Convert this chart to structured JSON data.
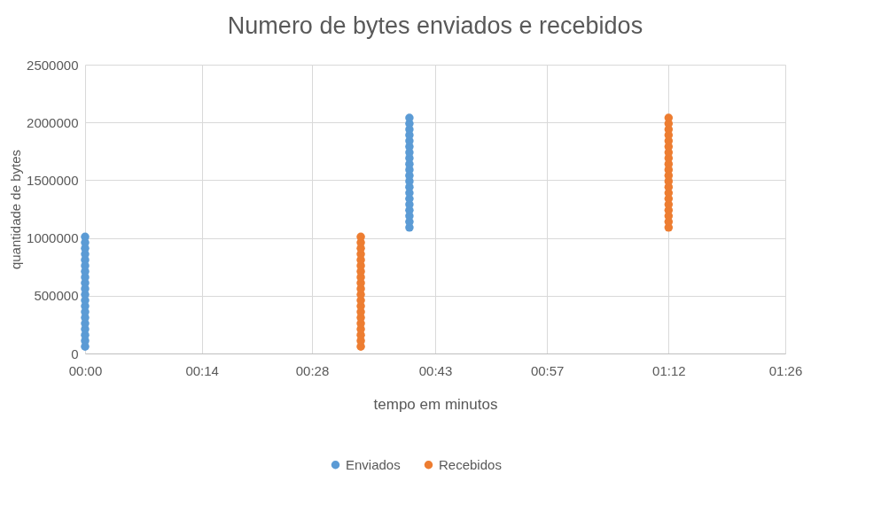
{
  "chart_data": {
    "type": "scatter",
    "title": "Numero de bytes enviados e recebidos",
    "xlabel": "tempo em minutos",
    "ylabel": "quantidade de bytes",
    "xlim": [
      0,
      1.44
    ],
    "xticks": [
      {
        "value": 0,
        "label": "00:00"
      },
      {
        "value": 0.24,
        "label": "00:14"
      },
      {
        "value": 0.4667,
        "label": "00:28"
      },
      {
        "value": 0.72,
        "label": "00:43"
      },
      {
        "value": 0.95,
        "label": "00:57"
      },
      {
        "value": 1.2,
        "label": "01:12"
      },
      {
        "value": 1.44,
        "label": "01:26"
      }
    ],
    "ylim": [
      0,
      2500000
    ],
    "yticks": [
      0,
      500000,
      1000000,
      1500000,
      2000000,
      2500000
    ],
    "grid": true,
    "legend": "bottom",
    "marker": "circle",
    "series": [
      {
        "name": "Enviados",
        "color": "#5b9bd5",
        "x": [
          0,
          0,
          0,
          0,
          0,
          0,
          0,
          0,
          0,
          0,
          0,
          0,
          0,
          0,
          0,
          0,
          0,
          0,
          0,
          0,
          0.667,
          0.667,
          0.667,
          0.667,
          0.667,
          0.667,
          0.667,
          0.667,
          0.667,
          0.667,
          0.667,
          0.667,
          0.667,
          0.667,
          0.667,
          0.667,
          0.667,
          0.667,
          0.667,
          0.667
        ],
        "values": [
          60000,
          110000,
          160000,
          210000,
          260000,
          310000,
          360000,
          410000,
          460000,
          510000,
          560000,
          610000,
          660000,
          710000,
          760000,
          810000,
          860000,
          910000,
          960000,
          1010000,
          1090000,
          1140000,
          1190000,
          1240000,
          1290000,
          1340000,
          1390000,
          1440000,
          1490000,
          1540000,
          1590000,
          1640000,
          1690000,
          1740000,
          1790000,
          1840000,
          1890000,
          1940000,
          1990000,
          2040000
        ]
      },
      {
        "name": "Recebidos",
        "color": "#ed7d31",
        "x": [
          0.567,
          0.567,
          0.567,
          0.567,
          0.567,
          0.567,
          0.567,
          0.567,
          0.567,
          0.567,
          0.567,
          0.567,
          0.567,
          0.567,
          0.567,
          0.567,
          0.567,
          0.567,
          0.567,
          0.567,
          1.2,
          1.2,
          1.2,
          1.2,
          1.2,
          1.2,
          1.2,
          1.2,
          1.2,
          1.2,
          1.2,
          1.2,
          1.2,
          1.2,
          1.2,
          1.2,
          1.2,
          1.2,
          1.2,
          1.2
        ],
        "values": [
          60000,
          110000,
          160000,
          210000,
          260000,
          310000,
          360000,
          410000,
          460000,
          510000,
          560000,
          610000,
          660000,
          710000,
          760000,
          810000,
          860000,
          910000,
          960000,
          1010000,
          1090000,
          1140000,
          1190000,
          1240000,
          1290000,
          1340000,
          1390000,
          1440000,
          1490000,
          1540000,
          1590000,
          1640000,
          1690000,
          1740000,
          1790000,
          1840000,
          1890000,
          1940000,
          1990000,
          2040000
        ]
      }
    ]
  }
}
